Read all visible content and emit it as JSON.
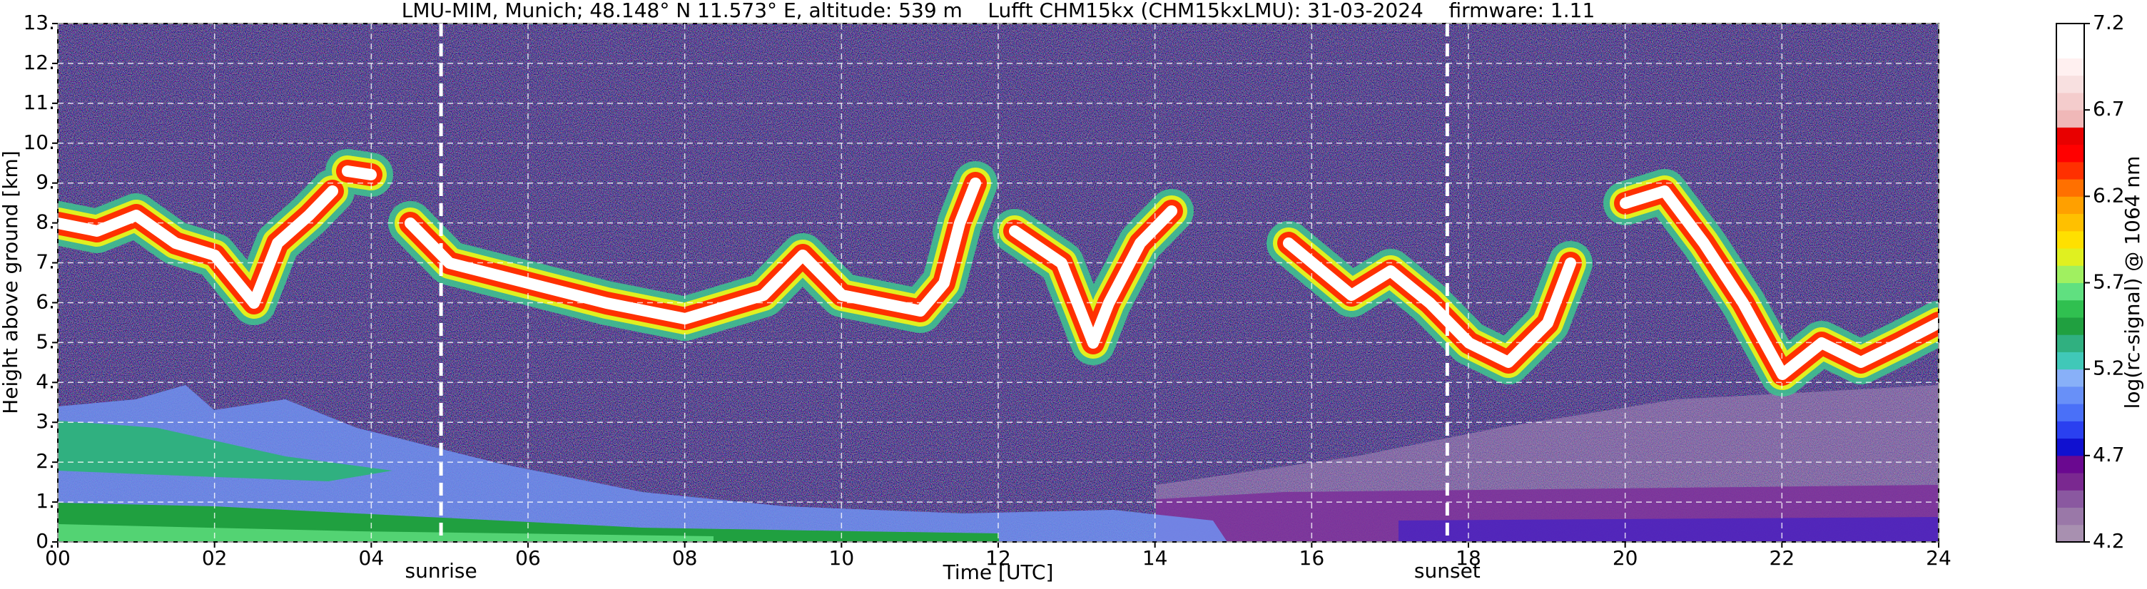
{
  "chart_data": {
    "type": "heatmap",
    "title": "LMU-MIM, Munich; 48.148° N 11.573° E, altitude: 539 m    Lufft CHM15kx (CHM15kxLMU): 31-03-2024    firmware: 1.11",
    "xlabel": "Time [UTC]",
    "ylabel": "Height above ground [km]",
    "xlim": [
      0,
      24
    ],
    "xticks": [
      {
        "value": 0,
        "label": "00"
      },
      {
        "value": 2,
        "label": "02"
      },
      {
        "value": 4,
        "label": "04"
      },
      {
        "value": 6,
        "label": "06"
      },
      {
        "value": 8,
        "label": "08"
      },
      {
        "value": 10,
        "label": "10"
      },
      {
        "value": 12,
        "label": "12"
      },
      {
        "value": 14,
        "label": "14"
      },
      {
        "value": 16,
        "label": "16"
      },
      {
        "value": 18,
        "label": "18"
      },
      {
        "value": 20,
        "label": "20"
      },
      {
        "value": 22,
        "label": "22"
      },
      {
        "value": 24,
        "label": "24"
      }
    ],
    "ylim": [
      0,
      13
    ],
    "yticks": [
      {
        "value": 0,
        "label": "0."
      },
      {
        "value": 1,
        "label": "1."
      },
      {
        "value": 2,
        "label": "2."
      },
      {
        "value": 3,
        "label": "3."
      },
      {
        "value": 4,
        "label": "4."
      },
      {
        "value": 5,
        "label": "5."
      },
      {
        "value": 6,
        "label": "6."
      },
      {
        "value": 7,
        "label": "7."
      },
      {
        "value": 8,
        "label": "8."
      },
      {
        "value": 9,
        "label": "9."
      },
      {
        "value": 10,
        "label": "10."
      },
      {
        "value": 11,
        "label": "11."
      },
      {
        "value": 12,
        "label": "12."
      },
      {
        "value": 13,
        "label": "13."
      }
    ],
    "grid": true,
    "markers": [
      {
        "label": "sunrise",
        "x": 4.89
      },
      {
        "label": "sunset",
        "x": 17.73
      }
    ],
    "colorbar": {
      "label": "log(rc-signal) @ 1064 nm",
      "zlim": [
        4.2,
        7.2
      ],
      "zticks": [
        4.2,
        4.7,
        5.2,
        5.7,
        6.2,
        6.7,
        7.2
      ],
      "colors": [
        "#a890b0",
        "#9a78a8",
        "#8a58a0",
        "#7a2890",
        "#6a0890",
        "#1010d0",
        "#2a40f0",
        "#4a70f8",
        "#6890f8",
        "#88b0f8",
        "#40c8b8",
        "#30b080",
        "#20a040",
        "#30c050",
        "#60e080",
        "#a0f060",
        "#e0f020",
        "#ffe000",
        "#ffc000",
        "#ffa000",
        "#ff7000",
        "#ff3000",
        "#ff0000",
        "#e80000",
        "#f0b8b8",
        "#f4cccc",
        "#f8e0e0",
        "#fff0f0",
        "#ffffff",
        "#ffffff"
      ]
    }
  }
}
